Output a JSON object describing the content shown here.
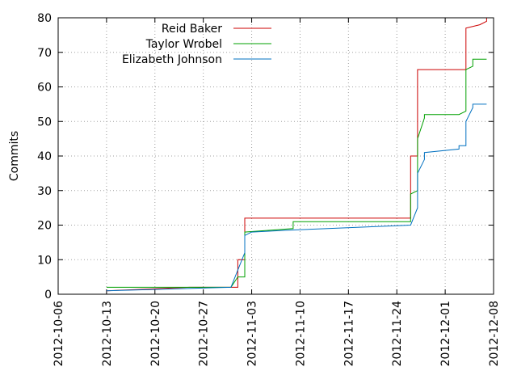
{
  "chart_data": {
    "type": "line",
    "ylabel": "Commits",
    "xlabel": "",
    "ylim": [
      0,
      80
    ],
    "xlim": [
      "2012-10-06",
      "2012-12-08"
    ],
    "yticks": [
      0,
      10,
      20,
      30,
      40,
      50,
      60,
      70,
      80
    ],
    "xticks": [
      "2012-10-06",
      "2012-10-13",
      "2012-10-20",
      "2012-10-27",
      "2012-11-03",
      "2012-11-10",
      "2012-11-17",
      "2012-11-24",
      "2012-12-01",
      "2012-12-08"
    ],
    "grid": true,
    "legend_position": "top-left",
    "series": [
      {
        "name": "Reid Baker",
        "color": "#cc0000",
        "points": [
          [
            "2012-10-13",
            1
          ],
          [
            "2012-10-25",
            2
          ],
          [
            "2012-11-01",
            2
          ],
          [
            "2012-11-01",
            10
          ],
          [
            "2012-11-02",
            10
          ],
          [
            "2012-11-02",
            22
          ],
          [
            "2012-11-26",
            22
          ],
          [
            "2012-11-26",
            30
          ],
          [
            "2012-11-26",
            40
          ],
          [
            "2012-11-27",
            40
          ],
          [
            "2012-11-27",
            50
          ],
          [
            "2012-11-27",
            65
          ],
          [
            "2012-12-04",
            65
          ],
          [
            "2012-12-04",
            77
          ],
          [
            "2012-12-06",
            78
          ],
          [
            "2012-12-07",
            79
          ],
          [
            "2012-12-07",
            80
          ]
        ]
      },
      {
        "name": "Taylor Wrobel",
        "color": "#00a000",
        "points": [
          [
            "2012-10-13",
            2
          ],
          [
            "2012-10-31",
            2
          ],
          [
            "2012-11-01",
            5
          ],
          [
            "2012-11-02",
            5
          ],
          [
            "2012-11-02",
            18
          ],
          [
            "2012-11-09",
            19
          ],
          [
            "2012-11-09",
            21
          ],
          [
            "2012-11-26",
            21
          ],
          [
            "2012-11-26",
            29
          ],
          [
            "2012-11-27",
            30
          ],
          [
            "2012-11-27",
            45
          ],
          [
            "2012-11-28",
            51
          ],
          [
            "2012-11-28",
            52
          ],
          [
            "2012-12-03",
            52
          ],
          [
            "2012-12-04",
            53
          ],
          [
            "2012-12-04",
            65
          ],
          [
            "2012-12-05",
            66
          ],
          [
            "2012-12-05",
            68
          ],
          [
            "2012-12-07",
            68
          ]
        ]
      },
      {
        "name": "Elizabeth Johnson",
        "color": "#0070c0",
        "points": [
          [
            "2012-10-13",
            1
          ],
          [
            "2012-10-31",
            2
          ],
          [
            "2012-11-01",
            7
          ],
          [
            "2012-11-02",
            12
          ],
          [
            "2012-11-02",
            17
          ],
          [
            "2012-11-03",
            18
          ],
          [
            "2012-11-08",
            18.5
          ],
          [
            "2012-11-14",
            19
          ],
          [
            "2012-11-20",
            19.5
          ],
          [
            "2012-11-26",
            20
          ],
          [
            "2012-11-27",
            25
          ],
          [
            "2012-11-27",
            35
          ],
          [
            "2012-11-28",
            39
          ],
          [
            "2012-11-28",
            41
          ],
          [
            "2012-12-03",
            42
          ],
          [
            "2012-12-03",
            43
          ],
          [
            "2012-12-04",
            43
          ],
          [
            "2012-12-04",
            50
          ],
          [
            "2012-12-05",
            54
          ],
          [
            "2012-12-05",
            55
          ],
          [
            "2012-12-07",
            55
          ]
        ]
      }
    ]
  }
}
